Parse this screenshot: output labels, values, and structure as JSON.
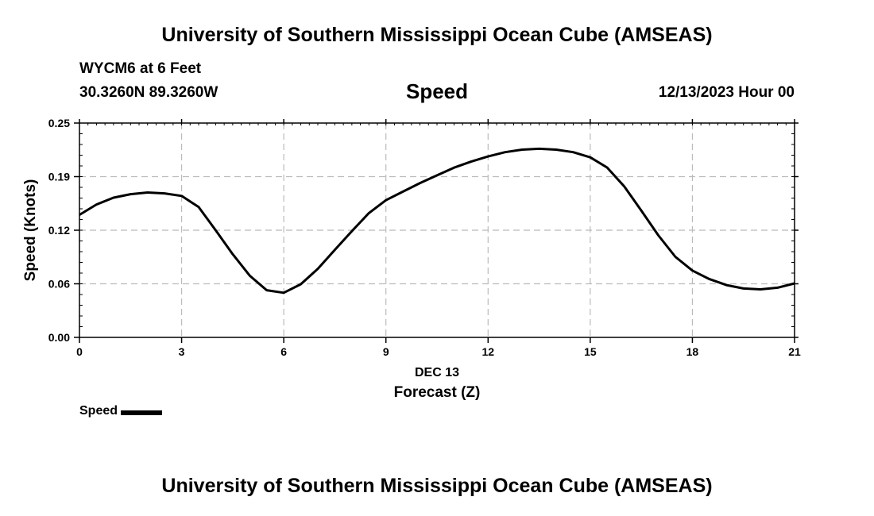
{
  "header": {
    "title": "University of Southern Mississippi Ocean Cube (AMSEAS)",
    "station": "WYCM6 at 6 Feet",
    "coordinates": "30.3260N  89.3260W",
    "datetime": "12/13/2023 Hour 00"
  },
  "footer": {
    "title": "University of Southern Mississippi Ocean Cube (AMSEAS)"
  },
  "chart_data": {
    "type": "line",
    "title": "Speed",
    "ylabel": "Speed (Knots)",
    "xlabel": "Forecast (Z)",
    "xsublabel": "DEC 13",
    "xlim": [
      0,
      21
    ],
    "ylim": [
      0,
      0.25
    ],
    "xticks": [
      0,
      3,
      6,
      9,
      12,
      15,
      18,
      21
    ],
    "xtick_labels": [
      "0",
      "3",
      "6",
      "9",
      "12",
      "15",
      "18",
      "21"
    ],
    "yticks": [
      0,
      0.0625,
      0.125,
      0.1875,
      0.25
    ],
    "ytick_labels": [
      "0.00",
      "0.06",
      "0.12",
      "0.19",
      "0.25"
    ],
    "grid": true,
    "legend": "bottom-left",
    "series": [
      {
        "name": "Speed",
        "color": "#000000",
        "x": [
          0,
          0.5,
          1,
          1.5,
          2,
          2.5,
          3,
          3.5,
          4,
          4.5,
          5,
          5.5,
          6,
          6.5,
          7,
          7.5,
          8,
          8.5,
          9,
          9.5,
          10,
          10.5,
          11,
          11.5,
          12,
          12.5,
          13,
          13.5,
          14,
          14.5,
          15,
          15.5,
          16,
          16.5,
          17,
          17.5,
          18,
          18.5,
          19,
          19.5,
          20,
          20.5,
          21
        ],
        "values": [
          0.143,
          0.155,
          0.163,
          0.167,
          0.169,
          0.168,
          0.165,
          0.152,
          0.125,
          0.097,
          0.072,
          0.055,
          0.052,
          0.062,
          0.08,
          0.102,
          0.124,
          0.145,
          0.16,
          0.17,
          0.18,
          0.189,
          0.198,
          0.205,
          0.211,
          0.216,
          0.219,
          0.22,
          0.219,
          0.216,
          0.21,
          0.198,
          0.176,
          0.148,
          0.119,
          0.094,
          0.078,
          0.068,
          0.061,
          0.057,
          0.056,
          0.058,
          0.063
        ]
      }
    ]
  }
}
